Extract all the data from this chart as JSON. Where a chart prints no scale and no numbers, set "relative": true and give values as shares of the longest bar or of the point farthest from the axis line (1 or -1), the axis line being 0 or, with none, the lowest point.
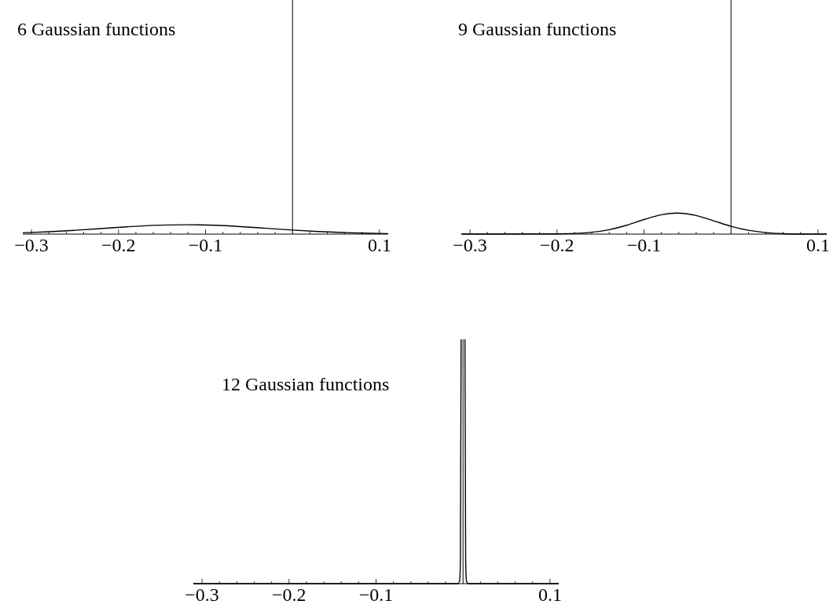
{
  "chart_data": [
    {
      "type": "line",
      "title": "6 Gaussian functions",
      "relative": true,
      "color": "#000000",
      "xlim": [
        -0.31,
        0.11
      ],
      "xticks": [
        {
          "value": -0.3,
          "label": "−0.3"
        },
        {
          "value": -0.28,
          "label": null
        },
        {
          "value": -0.26,
          "label": null
        },
        {
          "value": -0.24,
          "label": null
        },
        {
          "value": -0.22,
          "label": null
        },
        {
          "value": -0.2,
          "label": "−0.2"
        },
        {
          "value": -0.18,
          "label": null
        },
        {
          "value": -0.16,
          "label": null
        },
        {
          "value": -0.14,
          "label": null
        },
        {
          "value": -0.12,
          "label": null
        },
        {
          "value": -0.1,
          "label": "−0.1"
        },
        {
          "value": -0.08,
          "label": null
        },
        {
          "value": -0.06,
          "label": null
        },
        {
          "value": -0.04,
          "label": null
        },
        {
          "value": -0.02,
          "label": null
        },
        {
          "value": 0.02,
          "label": null
        },
        {
          "value": 0.04,
          "label": null
        },
        {
          "value": 0.06,
          "label": null
        },
        {
          "value": 0.08,
          "label": null
        },
        {
          "value": 0.1,
          "label": "0.1"
        }
      ],
      "x": [
        -0.31,
        -0.28,
        -0.25,
        -0.22,
        -0.19,
        -0.16,
        -0.123,
        -0.09,
        -0.06,
        -0.03,
        0,
        0.03,
        0.06,
        0.09,
        0.11
      ],
      "values": [
        0.14,
        0.25,
        0.41,
        0.59,
        0.78,
        0.93,
        1,
        0.94,
        0.8,
        0.62,
        0.43,
        0.27,
        0.16,
        0.08,
        0.05
      ]
    },
    {
      "type": "line",
      "title": "9 Gaussian functions",
      "relative": true,
      "color": "#000000",
      "xlim": [
        -0.31,
        0.11
      ],
      "xticks": [
        {
          "value": -0.3,
          "label": "−0.3"
        },
        {
          "value": -0.28,
          "label": null
        },
        {
          "value": -0.26,
          "label": null
        },
        {
          "value": -0.24,
          "label": null
        },
        {
          "value": -0.22,
          "label": null
        },
        {
          "value": -0.2,
          "label": "−0.2"
        },
        {
          "value": -0.18,
          "label": null
        },
        {
          "value": -0.16,
          "label": null
        },
        {
          "value": -0.14,
          "label": null
        },
        {
          "value": -0.12,
          "label": null
        },
        {
          "value": -0.1,
          "label": "−0.1"
        },
        {
          "value": -0.08,
          "label": null
        },
        {
          "value": -0.06,
          "label": null
        },
        {
          "value": -0.04,
          "label": null
        },
        {
          "value": -0.02,
          "label": null
        },
        {
          "value": 0.02,
          "label": null
        },
        {
          "value": 0.04,
          "label": null
        },
        {
          "value": 0.06,
          "label": null
        },
        {
          "value": 0.08,
          "label": null
        },
        {
          "value": 0.1,
          "label": "0.1"
        }
      ],
      "x": [
        -0.31,
        -0.2,
        -0.17,
        -0.14,
        -0.12,
        -0.1,
        -0.08,
        -0.062,
        -0.04,
        -0.02,
        0,
        0.02,
        0.04,
        0.06,
        0.08,
        0.11
      ],
      "values": [
        0,
        0.01,
        0.05,
        0.21,
        0.42,
        0.69,
        0.92,
        1,
        0.88,
        0.63,
        0.37,
        0.18,
        0.07,
        0.02,
        0,
        0
      ]
    },
    {
      "type": "line",
      "title": "12 Gaussian functions",
      "relative": true,
      "color": "#000000",
      "xlim": [
        -0.31,
        0.11
      ],
      "xticks": [
        {
          "value": -0.3,
          "label": "−0.3"
        },
        {
          "value": -0.28,
          "label": null
        },
        {
          "value": -0.26,
          "label": null
        },
        {
          "value": -0.24,
          "label": null
        },
        {
          "value": -0.22,
          "label": null
        },
        {
          "value": -0.2,
          "label": "−0.2"
        },
        {
          "value": -0.18,
          "label": null
        },
        {
          "value": -0.16,
          "label": null
        },
        {
          "value": -0.14,
          "label": null
        },
        {
          "value": -0.12,
          "label": null
        },
        {
          "value": -0.1,
          "label": "−0.1"
        },
        {
          "value": -0.08,
          "label": null
        },
        {
          "value": -0.06,
          "label": null
        },
        {
          "value": -0.04,
          "label": null
        },
        {
          "value": -0.02,
          "label": null
        },
        {
          "value": 0.02,
          "label": null
        },
        {
          "value": 0.04,
          "label": null
        },
        {
          "value": 0.06,
          "label": null
        },
        {
          "value": 0.08,
          "label": null
        },
        {
          "value": 0.1,
          "label": "0.1"
        }
      ],
      "x": [
        -0.31,
        -0.006,
        -0.004,
        -0.003,
        -0.0022,
        0,
        0.0022,
        0.003,
        0.004,
        0.006,
        0.11
      ],
      "values": [
        0,
        0,
        0.01,
        0.1,
        1,
        null,
        1,
        0.1,
        0.01,
        0,
        0
      ]
    }
  ]
}
